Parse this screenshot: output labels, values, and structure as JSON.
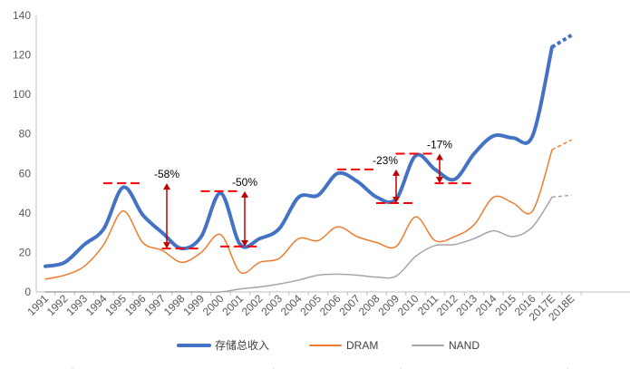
{
  "chart_data": {
    "type": "line",
    "title": "",
    "xlabel": "",
    "ylabel": "",
    "ylim": [
      0,
      140
    ],
    "yticks": [
      0,
      20,
      40,
      60,
      80,
      100,
      120,
      140
    ],
    "grid": false,
    "legend_position": "bottom",
    "categories": [
      "1991",
      "1992",
      "1993",
      "1994",
      "1995",
      "1996",
      "1997",
      "1998",
      "1999",
      "2000",
      "2001",
      "2002",
      "2003",
      "2004",
      "2005",
      "2006",
      "2007",
      "2008",
      "2009",
      "2010",
      "2011",
      "2012",
      "2013",
      "2014",
      "2015",
      "2016",
      "2017E",
      "2018E"
    ],
    "series": [
      {
        "name": "存储总收入",
        "color": "#4472C4",
        "width": 4,
        "values": [
          13,
          15,
          24,
          32,
          53,
          39,
          30,
          22,
          28,
          50,
          24,
          27,
          32,
          48,
          49,
          60,
          56,
          48,
          47,
          69,
          62,
          57,
          70,
          79,
          78,
          79,
          124,
          130
        ]
      },
      {
        "name": "DRAM",
        "color": "#ED7D31",
        "width": 1.5,
        "values": [
          6.5,
          8.5,
          13,
          24,
          41,
          25,
          21,
          15,
          20,
          29,
          10,
          15,
          17,
          27,
          26,
          33,
          28,
          25,
          23,
          38,
          26,
          28,
          34,
          48,
          45,
          41,
          72,
          77
        ]
      },
      {
        "name": "NAND",
        "color": "#A5A5A5",
        "width": 1.5,
        "values": [
          0,
          0,
          0,
          0,
          0,
          0,
          0,
          0,
          0,
          0,
          1.5,
          2.5,
          4,
          6,
          8.5,
          9,
          8.5,
          7.5,
          8,
          18,
          23.5,
          24,
          27,
          31,
          28,
          33,
          48,
          49
        ]
      }
    ],
    "annotations": [
      {
        "label": "-58%",
        "x_from": 4,
        "x_to": 7,
        "high": 55,
        "low": 22
      },
      {
        "label": "-50%",
        "x_from": 9,
        "x_to": 10,
        "high": 51,
        "low": 23
      },
      {
        "label": "-23%",
        "x_from": 16,
        "x_to": 18,
        "high": 62,
        "low": 45
      },
      {
        "label": "-17%",
        "x_from": 19,
        "x_to": 21,
        "high": 70,
        "low": 55
      }
    ]
  }
}
